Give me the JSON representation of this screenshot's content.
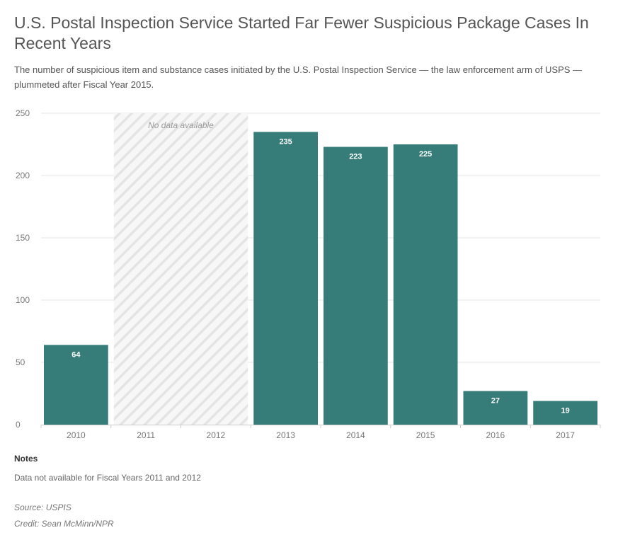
{
  "title": "U.S. Postal Inspection Service Started Far Fewer Suspicious Package Cases In Recent Years",
  "subtitle": "The number of suspicious item and substance cases initiated by the U.S. Postal Inspection Service — the law enforcement arm of USPS — plummeted after Fiscal Year 2015.",
  "notes": {
    "heading": "Notes",
    "text": "Data not available for Fiscal Years 2011 and 2012"
  },
  "source": "Source: USPIS",
  "credit": "Credit: Sean McMinn/NPR",
  "colors": {
    "bar": "#367d7a",
    "grid": "#e6e6e6",
    "hatch": "#e4e4e4"
  },
  "chart_data": {
    "type": "bar",
    "categories": [
      "2010",
      "2011",
      "2012",
      "2013",
      "2014",
      "2015",
      "2016",
      "2017"
    ],
    "values": [
      64,
      null,
      null,
      235,
      223,
      225,
      27,
      19
    ],
    "ylim": [
      0,
      250
    ],
    "yticks": [
      0,
      50,
      100,
      150,
      200,
      250
    ],
    "grid": true,
    "no_data_range": [
      "2011",
      "2012"
    ],
    "no_data_label": "No data available"
  }
}
